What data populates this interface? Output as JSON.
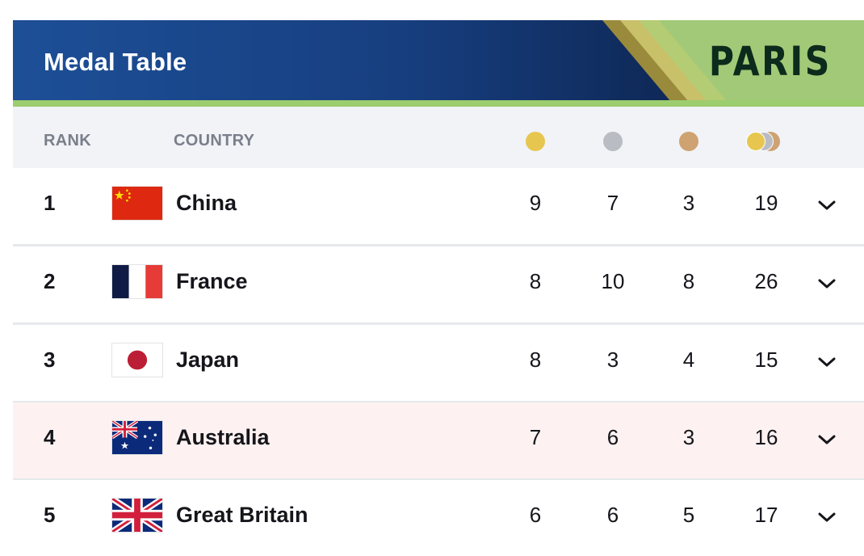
{
  "banner": {
    "title": "Medal Table",
    "brand": "PARIS"
  },
  "columns": {
    "rank": "RANK",
    "country": "COUNTRY",
    "gold_icon": "gold-medal-icon",
    "silver_icon": "silver-medal-icon",
    "bronze_icon": "bronze-medal-icon",
    "total_icon": "total-medals-icon"
  },
  "colors": {
    "gold": "#e7c64f",
    "silver": "#b9bcc3",
    "bronze": "#cfa271",
    "highlight_row": "#fdf2f1"
  },
  "rows": [
    {
      "rank": "1",
      "country": "China",
      "flag": "china-flag-icon",
      "gold": "9",
      "silver": "7",
      "bronze": "3",
      "total": "19"
    },
    {
      "rank": "2",
      "country": "France",
      "flag": "france-flag-icon",
      "gold": "8",
      "silver": "10",
      "bronze": "8",
      "total": "26"
    },
    {
      "rank": "3",
      "country": "Japan",
      "flag": "japan-flag-icon",
      "gold": "8",
      "silver": "3",
      "bronze": "4",
      "total": "15"
    },
    {
      "rank": "4",
      "country": "Australia",
      "flag": "australia-flag-icon",
      "gold": "7",
      "silver": "6",
      "bronze": "3",
      "total": "16"
    },
    {
      "rank": "5",
      "country": "Great Britain",
      "flag": "great-britain-flag-icon",
      "gold": "6",
      "silver": "6",
      "bronze": "5",
      "total": "17"
    }
  ]
}
